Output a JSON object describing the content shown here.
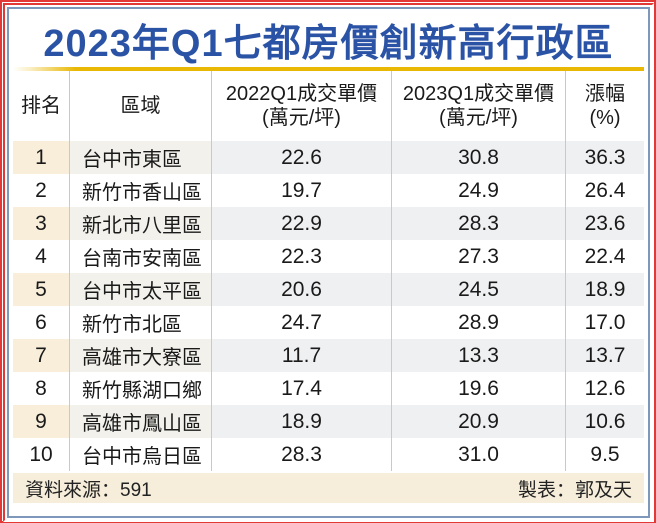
{
  "title": "2023年Q1七都房價創新高行政區",
  "table": {
    "headers": {
      "rank": "排名",
      "region": "區域",
      "price2022_line1": "2022Q1成交單價",
      "price2022_line2": "(萬元/坪)",
      "price2023_line1": "2023Q1成交單價",
      "price2023_line2": "(萬元/坪)",
      "change_line1": "漲幅",
      "change_line2": "(%)"
    },
    "rows": [
      {
        "rank": "1",
        "region": "台中市東區",
        "p2022": "22.6",
        "p2023": "30.8",
        "change": "36.3"
      },
      {
        "rank": "2",
        "region": "新竹市香山區",
        "p2022": "19.7",
        "p2023": "24.9",
        "change": "26.4"
      },
      {
        "rank": "3",
        "region": "新北市八里區",
        "p2022": "22.9",
        "p2023": "28.3",
        "change": "23.6"
      },
      {
        "rank": "4",
        "region": "台南市安南區",
        "p2022": "22.3",
        "p2023": "27.3",
        "change": "22.4"
      },
      {
        "rank": "5",
        "region": "台中市太平區",
        "p2022": "20.6",
        "p2023": "24.5",
        "change": "18.9"
      },
      {
        "rank": "6",
        "region": "新竹市北區",
        "p2022": "24.7",
        "p2023": "28.9",
        "change": "17.0"
      },
      {
        "rank": "7",
        "region": "高雄市大寮區",
        "p2022": "11.7",
        "p2023": "13.3",
        "change": "13.7"
      },
      {
        "rank": "8",
        "region": "新竹縣湖口鄉",
        "p2022": "17.4",
        "p2023": "19.6",
        "change": "12.6"
      },
      {
        "rank": "9",
        "region": "高雄市鳳山區",
        "p2022": "18.9",
        "p2023": "20.9",
        "change": "10.6"
      },
      {
        "rank": "10",
        "region": "台中市烏日區",
        "p2022": "28.3",
        "p2023": "31.0",
        "change": "9.5"
      }
    ]
  },
  "footer": {
    "source": "資料來源：591",
    "credit": "製表：郭及天"
  },
  "colors": {
    "frame_red": "#e23937",
    "frame_blue": "#7e98bb",
    "title_blue": "#2b53a5",
    "gold_rule": "#e9b805",
    "rank_cream": "#f8eeda",
    "row_tint": "#eff0f2",
    "footer_cream": "#f6edda"
  }
}
